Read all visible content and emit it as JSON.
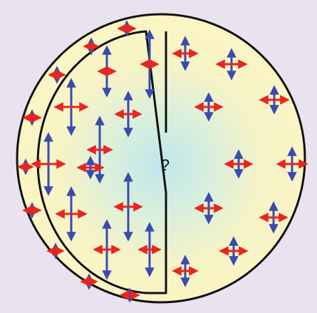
{
  "center_label": "?",
  "colors": {
    "background": "#e9e2ef",
    "disc_fill": "#fbf5c4",
    "center_glow": "#bfe6ee",
    "outline": "#111111",
    "red_arrow": "#e8251f",
    "blue_arrow": "#3a4bb0"
  }
}
